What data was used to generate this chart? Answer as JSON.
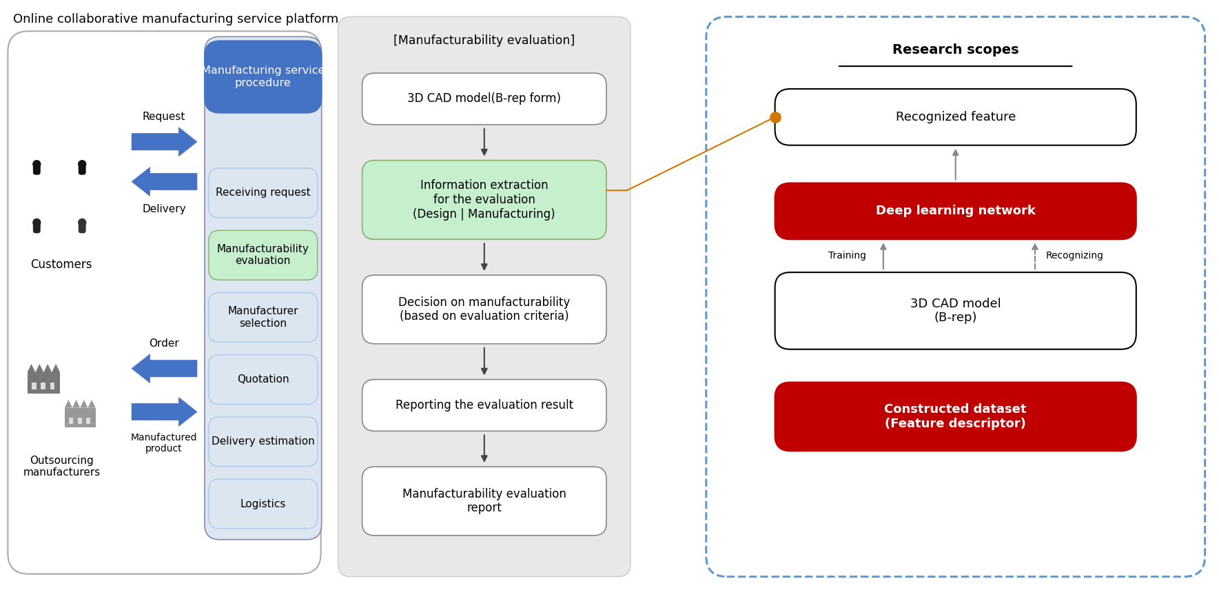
{
  "title": "Online collaborative manufacturing service platform",
  "bg_color": "#ffffff",
  "proc_header_text": "Manufacturing service\nprocedure",
  "proc_header_bg": "#4472c4",
  "proc_header_fg": "#ffffff",
  "proc_boxes": [
    {
      "text": "Receiving request",
      "bg": "#dce6f1",
      "fg": "#000000"
    },
    {
      "text": "Manufacturability\nevaluation",
      "bg": "#c6efce",
      "fg": "#000000"
    },
    {
      "text": "Manufacturer\nselection",
      "bg": "#dce6f1",
      "fg": "#000000"
    },
    {
      "text": "Quotation",
      "bg": "#dce6f1",
      "fg": "#000000"
    },
    {
      "text": "Delivery estimation",
      "bg": "#dce6f1",
      "fg": "#000000"
    },
    {
      "text": "Logistics",
      "bg": "#dce6f1",
      "fg": "#000000"
    }
  ],
  "mid_header": "[Manufacturability evaluation]",
  "mid_bg": "#e8e8e8",
  "mid_boxes": [
    {
      "text": "3D CAD model(B-rep form)",
      "bg": "#ffffff",
      "fg": "#000000"
    },
    {
      "text": "Information extraction\nfor the evaluation\n(Design | Manufacturing)",
      "bg": "#c6efce",
      "fg": "#000000"
    },
    {
      "text": "Decision on manufacturability\n(based on evaluation criteria)",
      "bg": "#ffffff",
      "fg": "#000000"
    },
    {
      "text": "Reporting the evaluation result",
      "bg": "#ffffff",
      "fg": "#000000"
    },
    {
      "text": "Manufacturability evaluation\nreport",
      "bg": "#ffffff",
      "fg": "#000000"
    }
  ],
  "research_title": "Research scopes",
  "research_border": "#5b9bd5",
  "rs_boxes": [
    {
      "text": "Recognized feature",
      "bg": "#ffffff",
      "fg": "#000000",
      "border": "#000000"
    },
    {
      "text": "Deep learning network",
      "bg": "#c00000",
      "fg": "#ffffff",
      "border": "#c00000"
    },
    {
      "text": "3D CAD model\n(B-rep)",
      "bg": "#ffffff",
      "fg": "#000000",
      "border": "#000000"
    },
    {
      "text": "Constructed dataset\n(Feature descriptor)",
      "bg": "#c00000",
      "fg": "#ffffff",
      "border": "#c00000"
    }
  ],
  "arrow_label_request": "Request",
  "arrow_label_delivery": "Delivery",
  "arrow_label_order": "Order",
  "arrow_label_manufactured": "Manufactured\nproduct",
  "arrow_label_training": "Training",
  "arrow_label_recognizing": "Recognizing",
  "customers_label": "Customers",
  "outsourcing_label": "Outsourcing\nmanufacturers"
}
